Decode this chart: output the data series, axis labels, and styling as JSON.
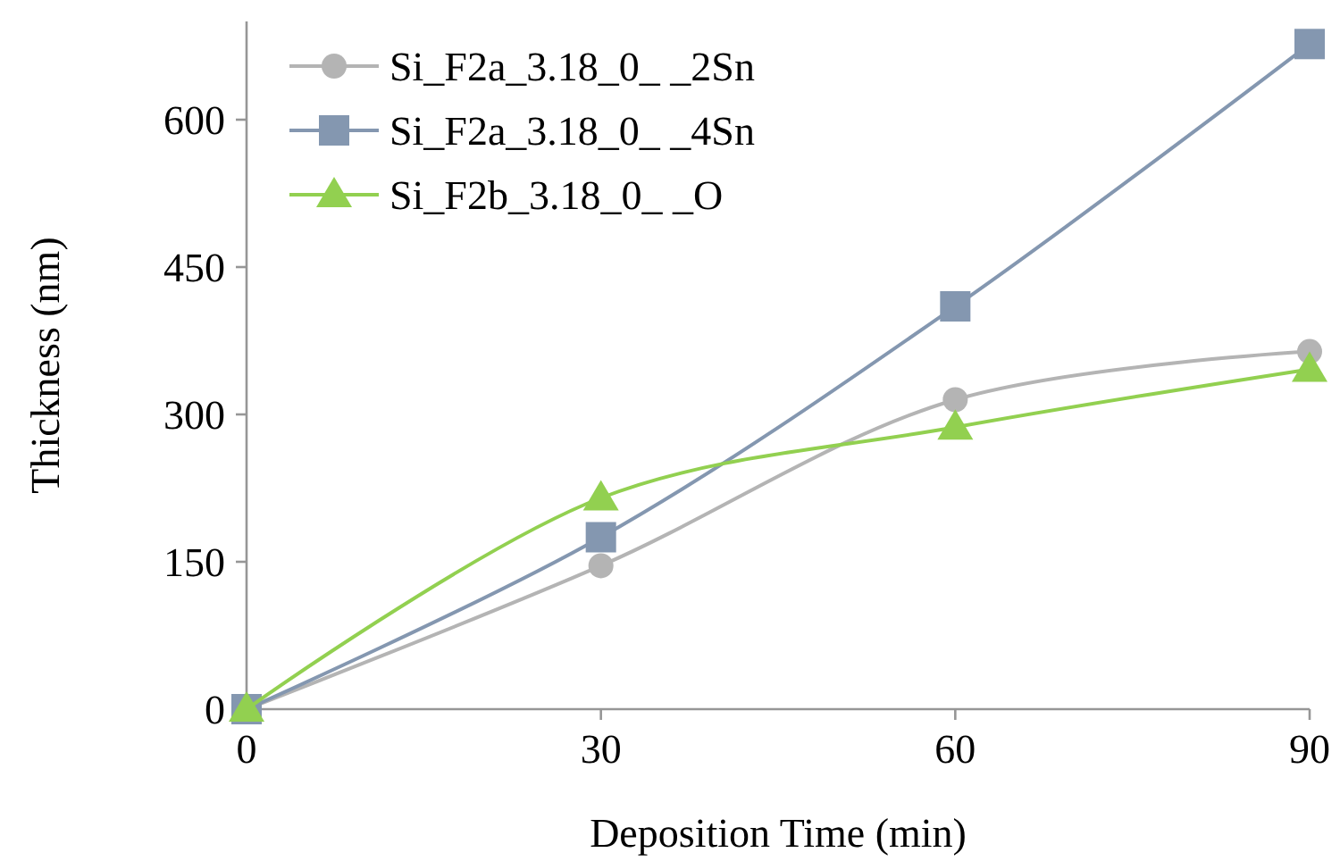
{
  "chart_data": {
    "type": "line",
    "xlabel": "Deposition Time (min)",
    "ylabel": "Thickness (nm)",
    "x": [
      0,
      30,
      60,
      90
    ],
    "xlim": [
      0,
      90
    ],
    "xticks": [
      0,
      30,
      60,
      90
    ],
    "ylim": [
      0,
      700
    ],
    "yticks": [
      0,
      150,
      300,
      450,
      600
    ],
    "grid": false,
    "legend": "top left",
    "series": [
      {
        "name": "Si_F2a_3.18_0_ _2Sn",
        "color": "#b4b4b4",
        "marker": "circle",
        "values": [
          0,
          146,
          315,
          364
        ]
      },
      {
        "name": "Si_F2a_3.18_0_ _4Sn",
        "color": "#8497b0",
        "marker": "square",
        "values": [
          0,
          175,
          410,
          677
        ]
      },
      {
        "name": "Si_F2b_3.18_0_ _O",
        "color": "#92d050",
        "marker": "triangle",
        "values": [
          0,
          215,
          287,
          346
        ]
      }
    ]
  }
}
